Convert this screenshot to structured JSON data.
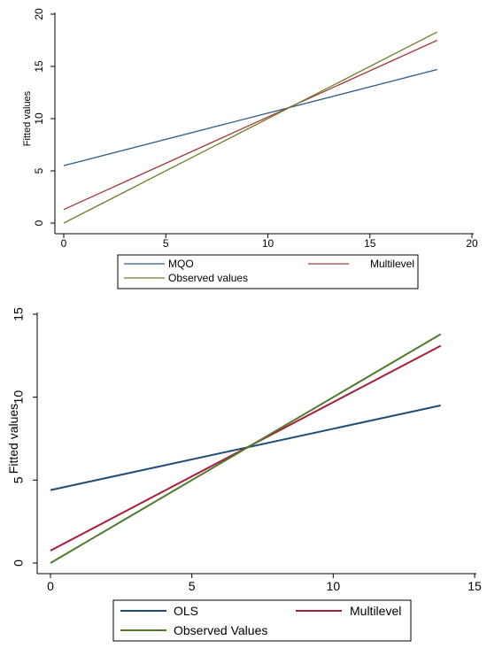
{
  "colors": {
    "top_mqo": "#2e5c8a",
    "top_multilevel": "#a33a3a",
    "top_observed": "#6f7d2a",
    "bottom_ols": "#1d4e78",
    "bottom_multilevel": "#a81c3a",
    "bottom_observed": "#4f7a2a"
  },
  "chart_data": [
    {
      "type": "line",
      "title": "",
      "xlabel": "",
      "ylabel": "Fitted values",
      "xlim": [
        0,
        20
      ],
      "ylim": [
        0,
        20
      ],
      "xticks": [
        "0",
        "5",
        "10",
        "15",
        "20"
      ],
      "yticks": [
        "0",
        "5",
        "10",
        "15",
        "20"
      ],
      "grid": false,
      "legend_position": "bottom",
      "series": [
        {
          "name": "MQO",
          "color_key": "top_mqo",
          "x": [
            0,
            18.3
          ],
          "y": [
            5.5,
            14.7
          ]
        },
        {
          "name": "Multilevel",
          "color_key": "top_multilevel",
          "x": [
            0,
            18.3
          ],
          "y": [
            1.3,
            17.5
          ]
        },
        {
          "name": "Observed values",
          "color_key": "top_observed",
          "x": [
            0,
            18.3
          ],
          "y": [
            0,
            18.3
          ]
        }
      ]
    },
    {
      "type": "line",
      "title": "",
      "xlabel": "",
      "ylabel": "Fitted values",
      "xlim": [
        0,
        15
      ],
      "ylim": [
        0,
        15
      ],
      "xticks": [
        "0",
        "5",
        "10",
        "15"
      ],
      "yticks": [
        "0",
        "5",
        "10",
        "15"
      ],
      "grid": false,
      "legend_position": "bottom",
      "series": [
        {
          "name": "OLS",
          "color_key": "bottom_ols",
          "x": [
            0,
            13.8
          ],
          "y": [
            4.4,
            9.5
          ]
        },
        {
          "name": "Multilevel",
          "color_key": "bottom_multilevel",
          "x": [
            0,
            13.8
          ],
          "y": [
            0.75,
            13.1
          ]
        },
        {
          "name": "Observed Values",
          "color_key": "bottom_observed",
          "x": [
            0,
            13.8
          ],
          "y": [
            0,
            13.8
          ]
        }
      ]
    }
  ]
}
